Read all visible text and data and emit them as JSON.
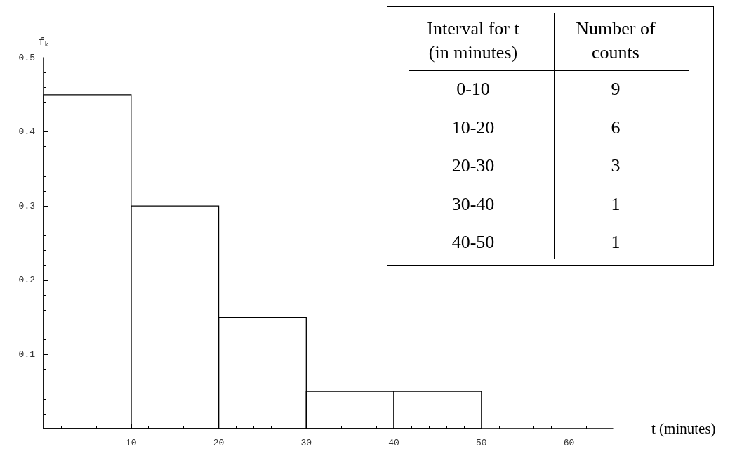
{
  "chart_data": {
    "type": "histogram",
    "xlabel": "t (minutes)",
    "ylabel": "f$_{k}$",
    "bins": [
      0,
      10,
      20,
      30,
      40,
      50
    ],
    "values": [
      0.45,
      0.3,
      0.15,
      0.05,
      0.05
    ],
    "color": "#000000",
    "xlim": [
      0,
      65
    ],
    "xticks": [
      10,
      20,
      30,
      40,
      50,
      60
    ],
    "ylim": [
      0,
      0.5
    ],
    "yticks": [
      0.1,
      0.2,
      0.3,
      0.4,
      0.5
    ],
    "annotations": [
      "Interval for t\n(in minutes)",
      "Number of\ncounts",
      "0-10",
      "9",
      "10-20",
      "6",
      "20-30",
      "3",
      "30-40",
      "1",
      "40-50",
      "1"
    ]
  }
}
